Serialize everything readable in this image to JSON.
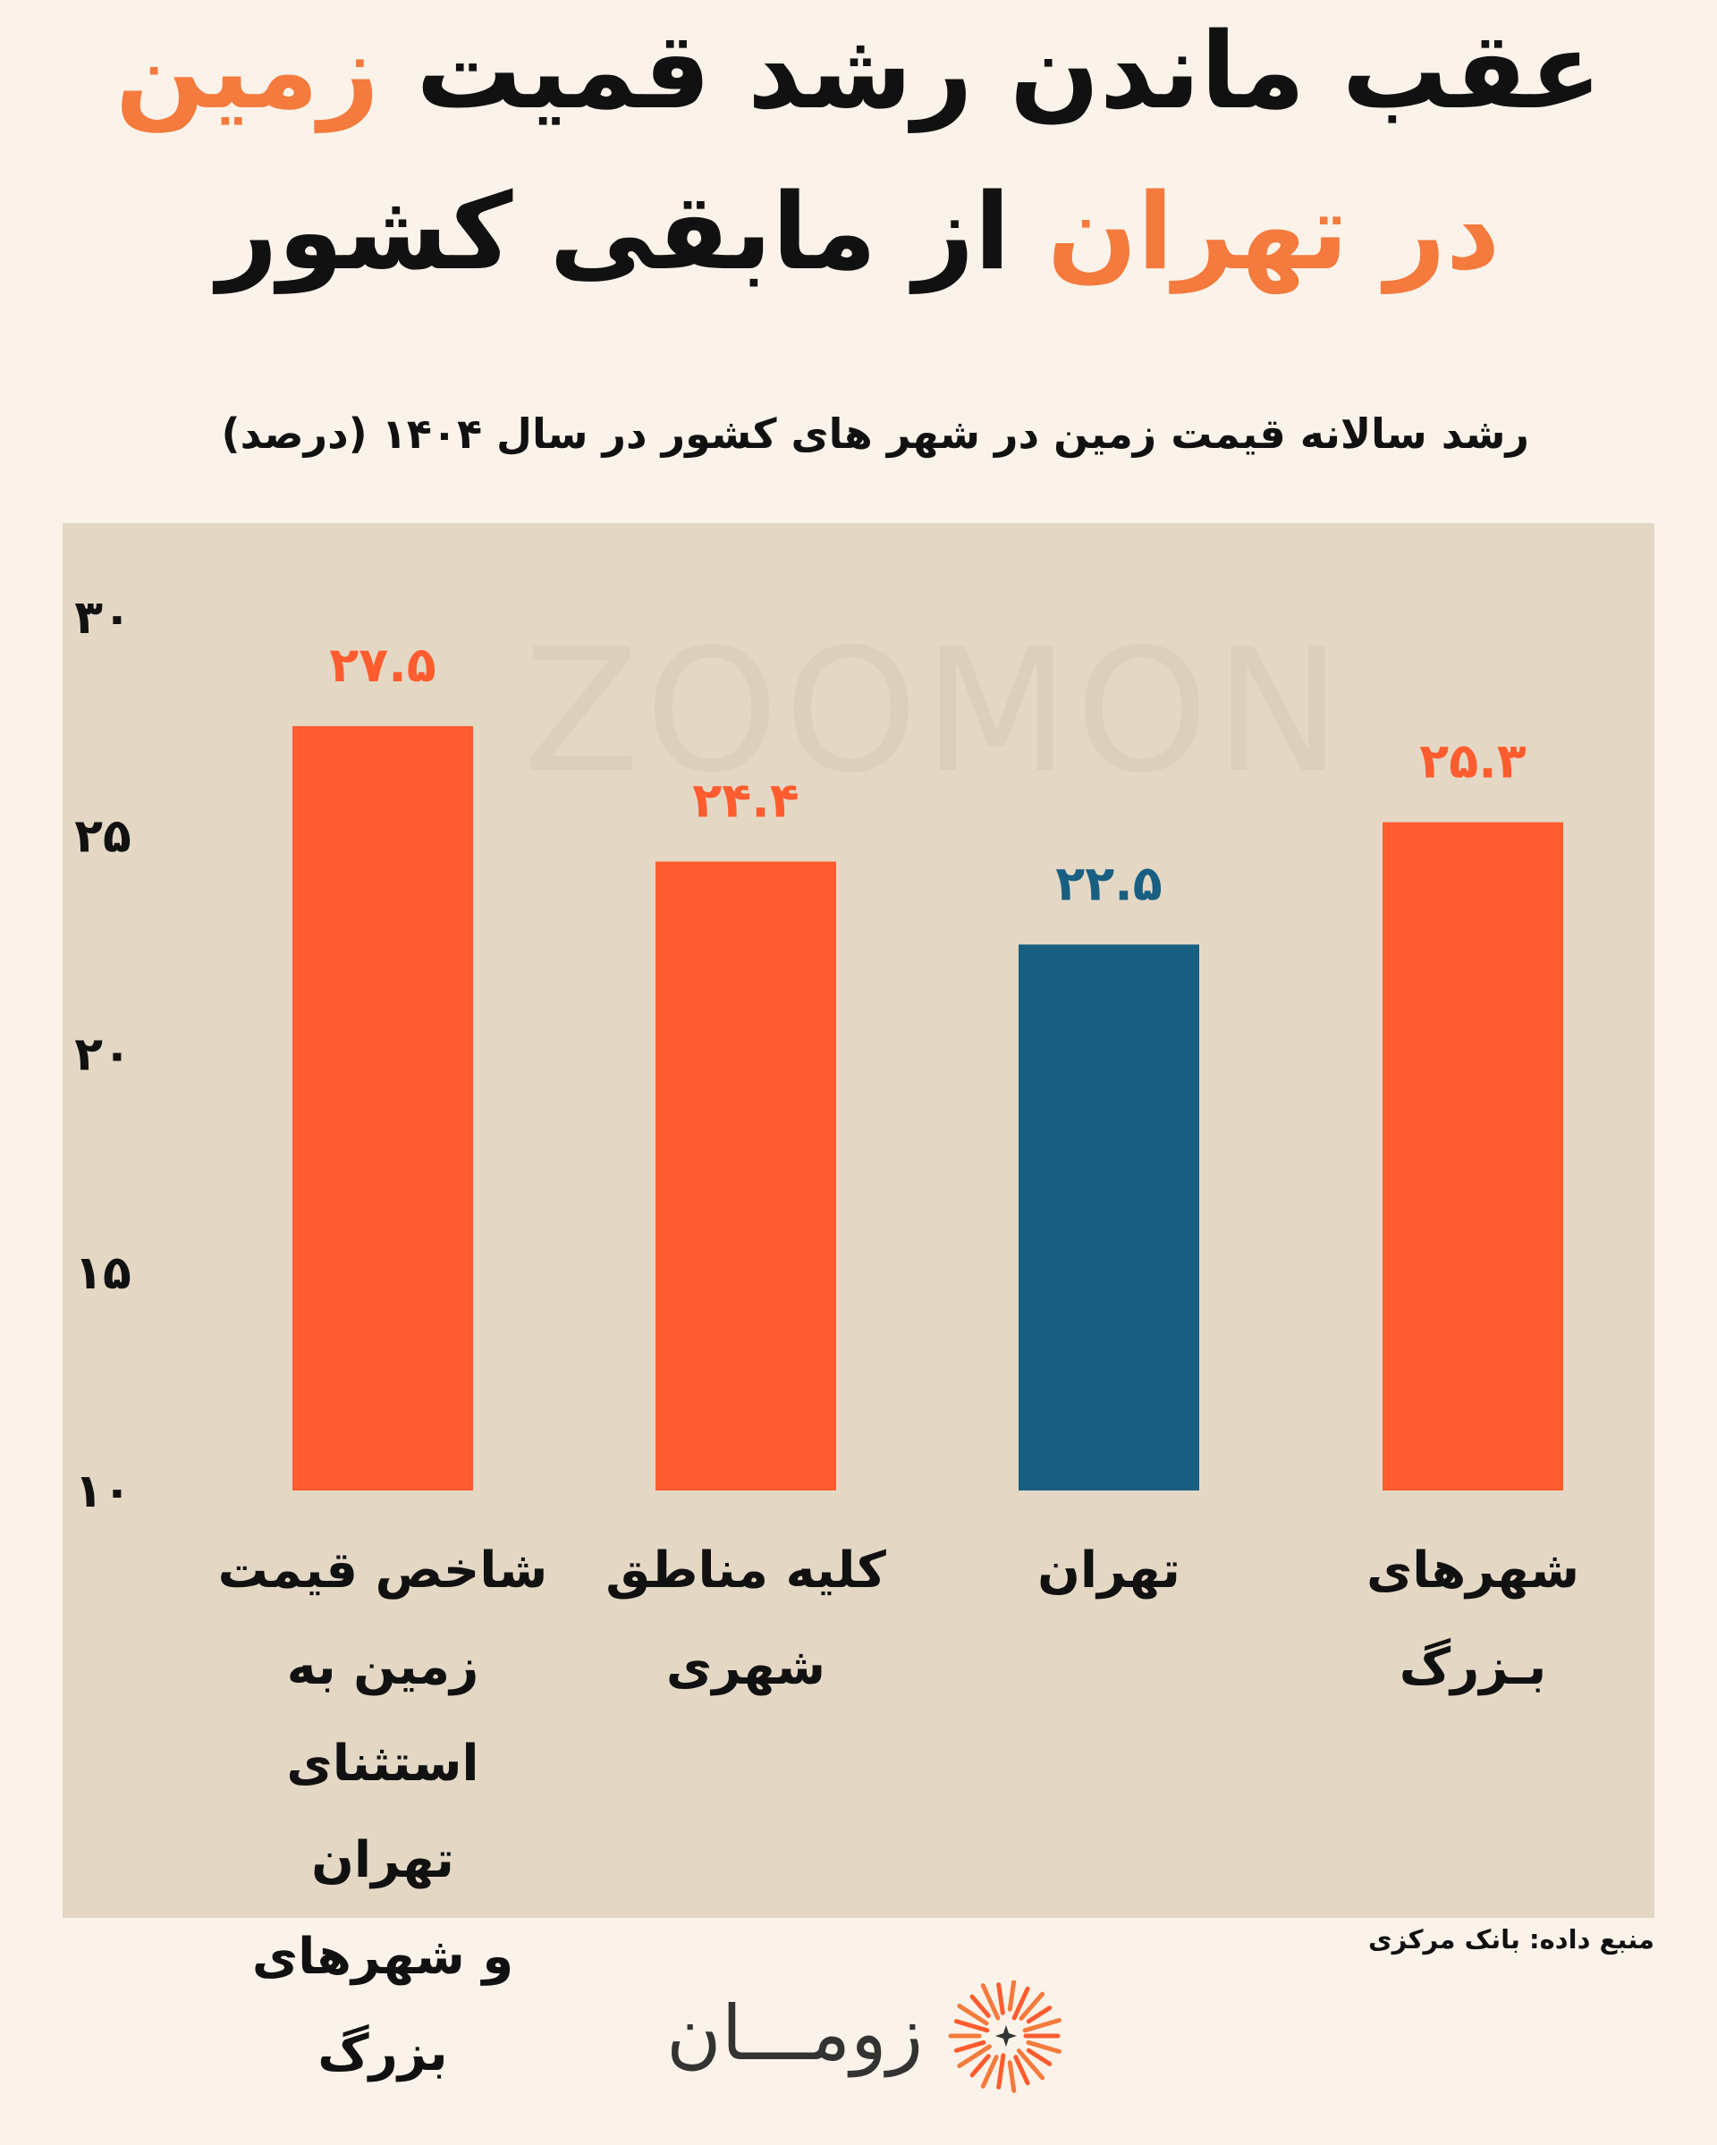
{
  "title": {
    "line1_prefix": "عقب ماندن رشد قمیت ",
    "line1_accent": "زمین",
    "line2_accent": "در تهران",
    "line2_suffix": " از مابقی کشور"
  },
  "subtitle": "رشد سالانه قیمت زمین در شهر های کشور در سال ۱۴۰۴ (درصد)",
  "watermark": "ZOOMON",
  "source_note": "منبع داده: بانک مرکزی",
  "logo": {
    "text": "زومـــان"
  },
  "colors": {
    "accent": "#f47a3d",
    "bar_orange": "#ff5c2f",
    "bar_blue": "#185f82",
    "label_orange": "#ff5c2f",
    "label_blue": "#185f82",
    "panel": "#e4d8c5",
    "background": "#fbf3e9"
  },
  "chart_data": {
    "type": "bar",
    "title": "رشد سالانه قیمت زمین در شهر های کشور در سال ۱۴۰۴ (درصد)",
    "categories": [
      "شاخص قیمت زمین به استثنای تهران و شهرهای بزرگ",
      "کلیه مناطق شهری",
      "تهران",
      "شهرهای بزرگ"
    ],
    "category_lines": [
      [
        "شاخص قیمت",
        "زمین به",
        "استثنای تهران",
        "و شهرهای بزرگ"
      ],
      [
        "کلیه مناطق",
        "شهری"
      ],
      [
        "تهران"
      ],
      [
        "شهرهای بـزرگ"
      ]
    ],
    "values": [
      27.5,
      24.4,
      22.5,
      25.3
    ],
    "value_labels": [
      "۲۷.۵",
      "۲۴.۴",
      "۲۲.۵",
      "۲۵.۳"
    ],
    "bar_colors": [
      "#ff5c2f",
      "#ff5c2f",
      "#185f82",
      "#ff5c2f"
    ],
    "ylim": [
      10,
      30
    ],
    "yticks": [
      10,
      15,
      20,
      25,
      30
    ],
    "ytick_labels": [
      "۱۰",
      "۱۵",
      "۲۰",
      "۲۵",
      "۳۰"
    ],
    "xlabel": "",
    "ylabel": "",
    "grid": false,
    "legend": "none"
  }
}
